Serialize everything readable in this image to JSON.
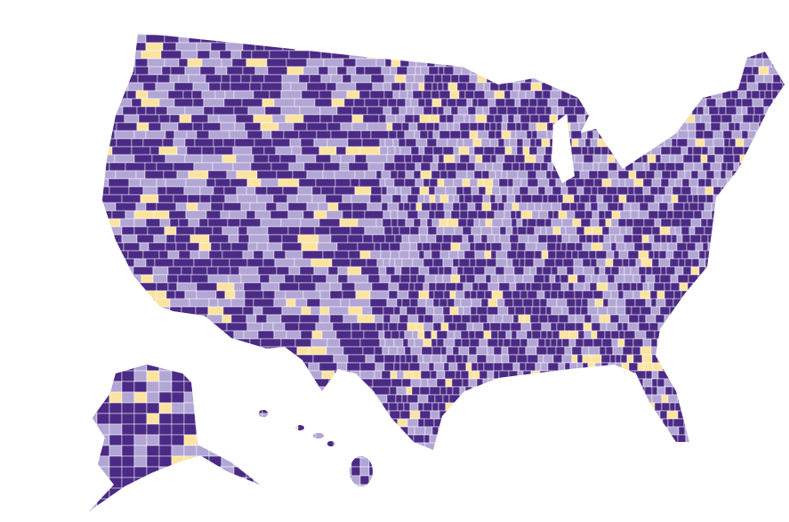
{
  "map": {
    "colors": [
      "#4b2a85",
      "#b2a6d5",
      "#fce3a0"
    ]
  }
}
